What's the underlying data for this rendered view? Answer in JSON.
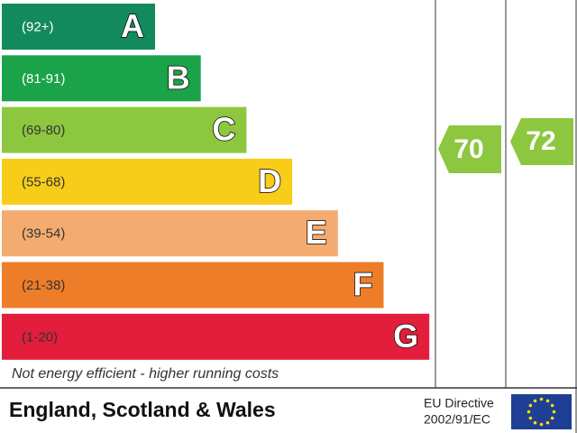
{
  "bands": [
    {
      "range": "(92+)",
      "letter": "A",
      "color": "#138a5e",
      "text_color": "#ffffff"
    },
    {
      "range": "(81-91)",
      "letter": "B",
      "color": "#1ba34a",
      "text_color": "#ffffff"
    },
    {
      "range": "(69-80)",
      "letter": "C",
      "color": "#8dc63f",
      "text_color": "#333333"
    },
    {
      "range": "(55-68)",
      "letter": "D",
      "color": "#f7cd1a",
      "text_color": "#333333"
    },
    {
      "range": "(39-54)",
      "letter": "E",
      "color": "#f4ab6f",
      "text_color": "#333333"
    },
    {
      "range": "(21-38)",
      "letter": "F",
      "color": "#ed7d29",
      "text_color": "#333333"
    },
    {
      "range": "(1-20)",
      "letter": "G",
      "color": "#e31d3c",
      "text_color": "#333333"
    }
  ],
  "footer_note": "Not energy efficient - higher running costs",
  "current": 70,
  "potential": 72,
  "region": "England, Scotland & Wales",
  "directive": [
    "EU Directive",
    "2002/91/EC"
  ]
}
